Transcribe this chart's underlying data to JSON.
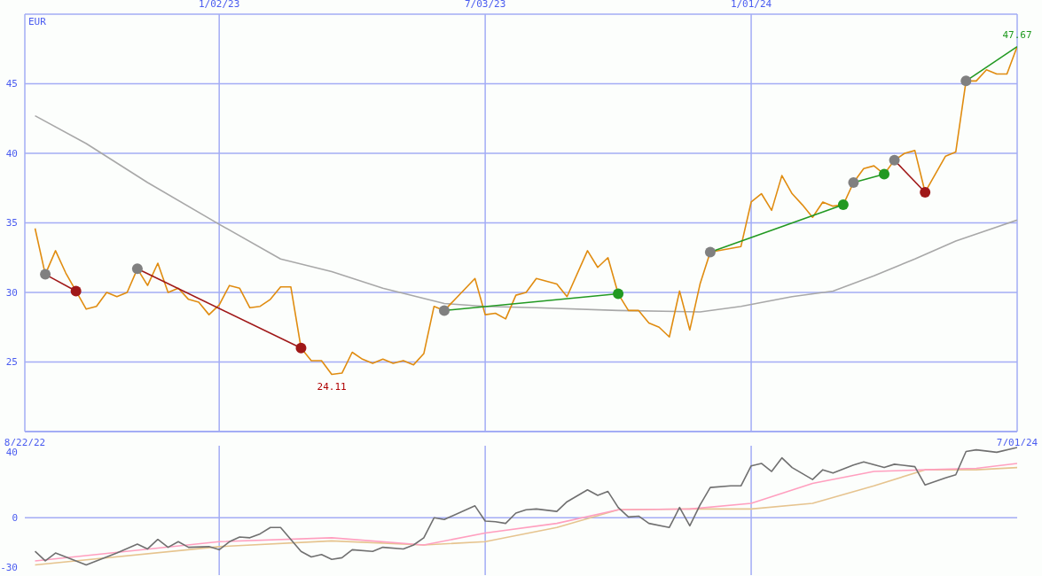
{
  "chart_data": [
    {
      "type": "line",
      "ylabel": "EUR",
      "xlim": [
        "2022-08-22",
        "2024-07-01"
      ],
      "xticks": [
        {
          "value": "2022-08-22",
          "label": "8/22/22"
        },
        {
          "value": "2024-07-01",
          "label": "7/01/24"
        }
      ],
      "x2lim": [
        "2022-08-22",
        "2024-07-01"
      ],
      "x2ticks": [
        {
          "value": "2023-01-02",
          "label": "1/02/23"
        },
        {
          "value": "2023-07-03",
          "label": "7/03/23"
        },
        {
          "value": "2024-01-01",
          "label": "1/01/24"
        }
      ],
      "ylim": [
        20,
        50
      ],
      "yticks": [
        25,
        30,
        35,
        40,
        45
      ],
      "grid": true,
      "annotations": [
        {
          "text": "24.11",
          "x": "2023-03-20",
          "y": 24.11
        },
        {
          "text": "47.67",
          "x": "2024-07-01",
          "y": 47.67
        }
      ],
      "series": [
        {
          "type": "line",
          "color": "#a8a8a8",
          "x": [
            "2022-08-29",
            "2022-10-03",
            "2022-11-14",
            "2023-01-02",
            "2023-02-13",
            "2023-03-20",
            "2023-04-24",
            "2023-06-05",
            "2023-07-03",
            "2023-08-07",
            "2023-10-02",
            "2023-11-27",
            "2023-12-25",
            "2024-01-29",
            "2024-02-26",
            "2024-03-25",
            "2024-04-22",
            "2024-05-20",
            "2024-07-01"
          ],
          "values": [
            42.7,
            40.7,
            37.9,
            34.9,
            32.4,
            31.5,
            30.3,
            29.2,
            29.0,
            28.9,
            28.7,
            28.6,
            29.0,
            29.7,
            30.1,
            31.2,
            32.4,
            33.7,
            35.2
          ]
        },
        {
          "type": "line",
          "color": "#e08c10",
          "x": [
            "2022-08-29",
            "2022-09-05",
            "2022-09-12",
            "2022-09-19",
            "2022-09-26",
            "2022-10-03",
            "2022-10-10",
            "2022-10-17",
            "2022-10-24",
            "2022-10-31",
            "2022-11-07",
            "2022-11-14",
            "2022-11-21",
            "2022-11-28",
            "2022-12-05",
            "2022-12-12",
            "2022-12-19",
            "2022-12-26",
            "2023-01-02",
            "2023-01-09",
            "2023-01-16",
            "2023-01-23",
            "2023-01-30",
            "2023-02-06",
            "2023-02-13",
            "2023-02-20",
            "2023-02-27",
            "2023-03-06",
            "2023-03-13",
            "2023-03-20",
            "2023-03-27",
            "2023-04-03",
            "2023-04-10",
            "2023-04-17",
            "2023-04-24",
            "2023-05-01",
            "2023-05-08",
            "2023-05-15",
            "2023-05-22",
            "2023-05-29",
            "2023-06-05",
            "2023-06-26",
            "2023-07-03",
            "2023-07-10",
            "2023-07-17",
            "2023-07-24",
            "2023-07-31",
            "2023-08-07",
            "2023-08-21",
            "2023-08-28",
            "2023-09-11",
            "2023-09-18",
            "2023-09-25",
            "2023-10-02",
            "2023-10-09",
            "2023-10-16",
            "2023-10-23",
            "2023-10-30",
            "2023-11-06",
            "2023-11-13",
            "2023-11-20",
            "2023-11-27",
            "2023-12-04",
            "2023-12-25",
            "2024-01-01",
            "2024-01-08",
            "2024-01-15",
            "2024-01-22",
            "2024-01-29",
            "2024-02-05",
            "2024-02-12",
            "2024-02-19",
            "2024-02-26",
            "2024-03-04",
            "2024-03-11",
            "2024-03-18",
            "2024-03-25",
            "2024-04-01",
            "2024-04-08",
            "2024-04-15",
            "2024-04-22",
            "2024-04-29",
            "2024-05-13",
            "2024-05-20",
            "2024-05-27",
            "2024-06-03",
            "2024-06-10",
            "2024-06-17",
            "2024-06-24",
            "2024-07-01"
          ],
          "values": [
            34.6,
            31.3,
            33.0,
            31.4,
            30.1,
            28.8,
            29.0,
            30.0,
            29.7,
            30.0,
            31.7,
            30.5,
            32.1,
            30.0,
            30.3,
            29.5,
            29.3,
            28.4,
            29.1,
            30.5,
            30.3,
            28.9,
            29.0,
            29.5,
            30.4,
            30.4,
            26.0,
            25.1,
            25.1,
            24.11,
            24.2,
            25.7,
            25.2,
            24.9,
            25.2,
            24.9,
            25.1,
            24.8,
            25.6,
            29.0,
            28.7,
            31.0,
            28.4,
            28.5,
            28.1,
            29.8,
            30.0,
            31.0,
            30.6,
            29.7,
            33.0,
            31.8,
            32.5,
            29.9,
            28.7,
            28.7,
            27.8,
            27.5,
            26.8,
            30.1,
            27.3,
            30.6,
            32.9,
            33.3,
            36.5,
            37.1,
            35.9,
            38.4,
            37.1,
            36.3,
            35.4,
            36.5,
            36.2,
            36.3,
            37.9,
            38.9,
            39.1,
            38.5,
            39.5,
            40.0,
            40.2,
            37.2,
            39.8,
            40.1,
            45.2,
            45.2,
            46.0,
            45.7,
            45.7,
            47.67
          ]
        },
        {
          "type": "line",
          "color": "#a01818",
          "x": [
            "2022-09-05",
            "2022-09-26"
          ],
          "values": [
            31.3,
            30.1
          ]
        },
        {
          "type": "line",
          "color": "#a01818",
          "x": [
            "2022-11-07",
            "2023-02-27"
          ],
          "values": [
            31.7,
            26.0
          ]
        },
        {
          "type": "line",
          "color": "#229922",
          "x": [
            "2023-06-05",
            "2023-10-02"
          ],
          "values": [
            28.7,
            29.9
          ]
        },
        {
          "type": "line",
          "color": "#229922",
          "x": [
            "2023-12-04",
            "2024-03-04"
          ],
          "values": [
            32.9,
            36.3
          ]
        },
        {
          "type": "line",
          "color": "#229922",
          "x": [
            "2024-03-11",
            "2024-04-01"
          ],
          "values": [
            37.9,
            38.5
          ]
        },
        {
          "type": "line",
          "color": "#a01818",
          "x": [
            "2024-04-08",
            "2024-04-29"
          ],
          "values": [
            39.5,
            37.2
          ]
        },
        {
          "type": "line",
          "color": "#229922",
          "x": [
            "2024-05-27",
            "2024-07-01"
          ],
          "values": [
            45.2,
            47.67
          ]
        },
        {
          "type": "scatter",
          "color": "#808080",
          "marker": "circle",
          "x": [
            "2022-09-05",
            "2022-11-07",
            "2023-06-05",
            "2023-12-04",
            "2024-03-11",
            "2024-04-08",
            "2024-05-27"
          ],
          "values": [
            31.3,
            31.7,
            28.7,
            32.9,
            37.9,
            39.5,
            45.2
          ]
        },
        {
          "type": "scatter",
          "color": "#a01818",
          "marker": "circle",
          "colors": [
            "#a01818",
            "#a01818",
            "#229922",
            "#229922",
            "#229922",
            "#a01818"
          ],
          "x": [
            "2022-09-26",
            "2023-02-27",
            "2023-10-02",
            "2024-03-04",
            "2024-04-01",
            "2024-04-29"
          ],
          "values": [
            30.1,
            26.0,
            29.9,
            36.3,
            38.5,
            37.2
          ]
        }
      ]
    },
    {
      "type": "line",
      "xlim": [
        "2022-08-22",
        "2024-07-01"
      ],
      "ylim": [
        -35,
        44
      ],
      "yticks": [
        -30,
        0,
        40
      ],
      "ref_lines": [
        {
          "axis": "y",
          "value": 0
        },
        {
          "axis": "x",
          "value": "2023-01-02"
        },
        {
          "axis": "x",
          "value": "2023-07-03"
        },
        {
          "axis": "x",
          "value": "2024-01-01"
        }
      ],
      "series": [
        {
          "type": "line",
          "color": "#e6c48f",
          "x": [
            "2022-08-29",
            "2023-01-02",
            "2023-03-20",
            "2023-05-22",
            "2023-07-03",
            "2023-08-21",
            "2023-10-02",
            "2023-11-20",
            "2024-01-01",
            "2024-02-12",
            "2024-03-25",
            "2024-04-29",
            "2024-06-03",
            "2024-07-01"
          ],
          "values": [
            -28.8,
            -17.6,
            -14.1,
            -16.6,
            -14.6,
            -5.9,
            4.9,
            5.4,
            5.4,
            8.8,
            19.5,
            29.3,
            29.3,
            30.7
          ]
        },
        {
          "type": "line",
          "color": "#ff9fbf",
          "x": [
            "2022-08-29",
            "2023-01-02",
            "2023-03-20",
            "2023-05-22",
            "2023-07-03",
            "2023-08-21",
            "2023-10-02",
            "2023-11-20",
            "2024-01-01",
            "2024-02-12",
            "2024-03-25",
            "2024-04-29",
            "2024-06-03",
            "2024-07-01"
          ],
          "values": [
            -26.3,
            -14.6,
            -12.2,
            -16.6,
            -9.3,
            -3.4,
            4.9,
            5.4,
            8.8,
            21.0,
            28.3,
            29.3,
            30.2,
            33.2
          ]
        },
        {
          "type": "line",
          "color": "#707070",
          "x": [
            "2022-08-29",
            "2022-09-05",
            "2022-09-12",
            "2022-10-03",
            "2022-10-24",
            "2022-11-07",
            "2022-11-14",
            "2022-11-21",
            "2022-11-28",
            "2022-12-05",
            "2022-12-12",
            "2022-12-26",
            "2023-01-02",
            "2023-01-09",
            "2023-01-16",
            "2023-01-23",
            "2023-01-30",
            "2023-02-06",
            "2023-02-13",
            "2023-02-27",
            "2023-03-06",
            "2023-03-13",
            "2023-03-20",
            "2023-03-27",
            "2023-04-03",
            "2023-04-17",
            "2023-04-24",
            "2023-05-08",
            "2023-05-15",
            "2023-05-22",
            "2023-05-29",
            "2023-06-05",
            "2023-06-26",
            "2023-07-03",
            "2023-07-10",
            "2023-07-17",
            "2023-07-24",
            "2023-07-31",
            "2023-08-07",
            "2023-08-21",
            "2023-08-28",
            "2023-09-11",
            "2023-09-18",
            "2023-09-25",
            "2023-10-02",
            "2023-10-09",
            "2023-10-16",
            "2023-10-23",
            "2023-11-06",
            "2023-11-13",
            "2023-11-20",
            "2023-11-27",
            "2023-12-04",
            "2023-12-18",
            "2023-12-25",
            "2024-01-01",
            "2024-01-08",
            "2024-01-15",
            "2024-01-22",
            "2024-01-29",
            "2024-02-12",
            "2024-02-19",
            "2024-02-26",
            "2024-03-11",
            "2024-03-18",
            "2024-04-01",
            "2024-04-08",
            "2024-04-22",
            "2024-04-29",
            "2024-05-13",
            "2024-05-20",
            "2024-05-27",
            "2024-06-03",
            "2024-06-17",
            "2024-07-01"
          ],
          "values": [
            -20.5,
            -26.3,
            -21.5,
            -28.8,
            -21.5,
            -16.1,
            -19.0,
            -13.2,
            -18.0,
            -14.6,
            -18.0,
            -17.6,
            -19.5,
            -14.6,
            -11.7,
            -12.2,
            -9.8,
            -5.9,
            -5.9,
            -20.5,
            -23.9,
            -22.4,
            -25.4,
            -24.4,
            -19.5,
            -20.5,
            -18.0,
            -19.0,
            -16.6,
            -12.2,
            0,
            -1.0,
            7.3,
            -2.0,
            -2.4,
            -3.4,
            2.9,
            4.9,
            5.4,
            3.9,
            9.8,
            17.1,
            13.7,
            16.1,
            6.3,
            0.5,
            1.0,
            -3.4,
            -5.9,
            6.3,
            -4.9,
            7.8,
            18.5,
            19.5,
            19.5,
            31.7,
            33.2,
            28.3,
            36.6,
            30.7,
            23.4,
            29.3,
            27.3,
            32.2,
            34.1,
            30.7,
            32.7,
            31.2,
            20.0,
            24.4,
            26.3,
            40.5,
            41.5,
            40.0,
            42.9
          ]
        }
      ]
    }
  ]
}
